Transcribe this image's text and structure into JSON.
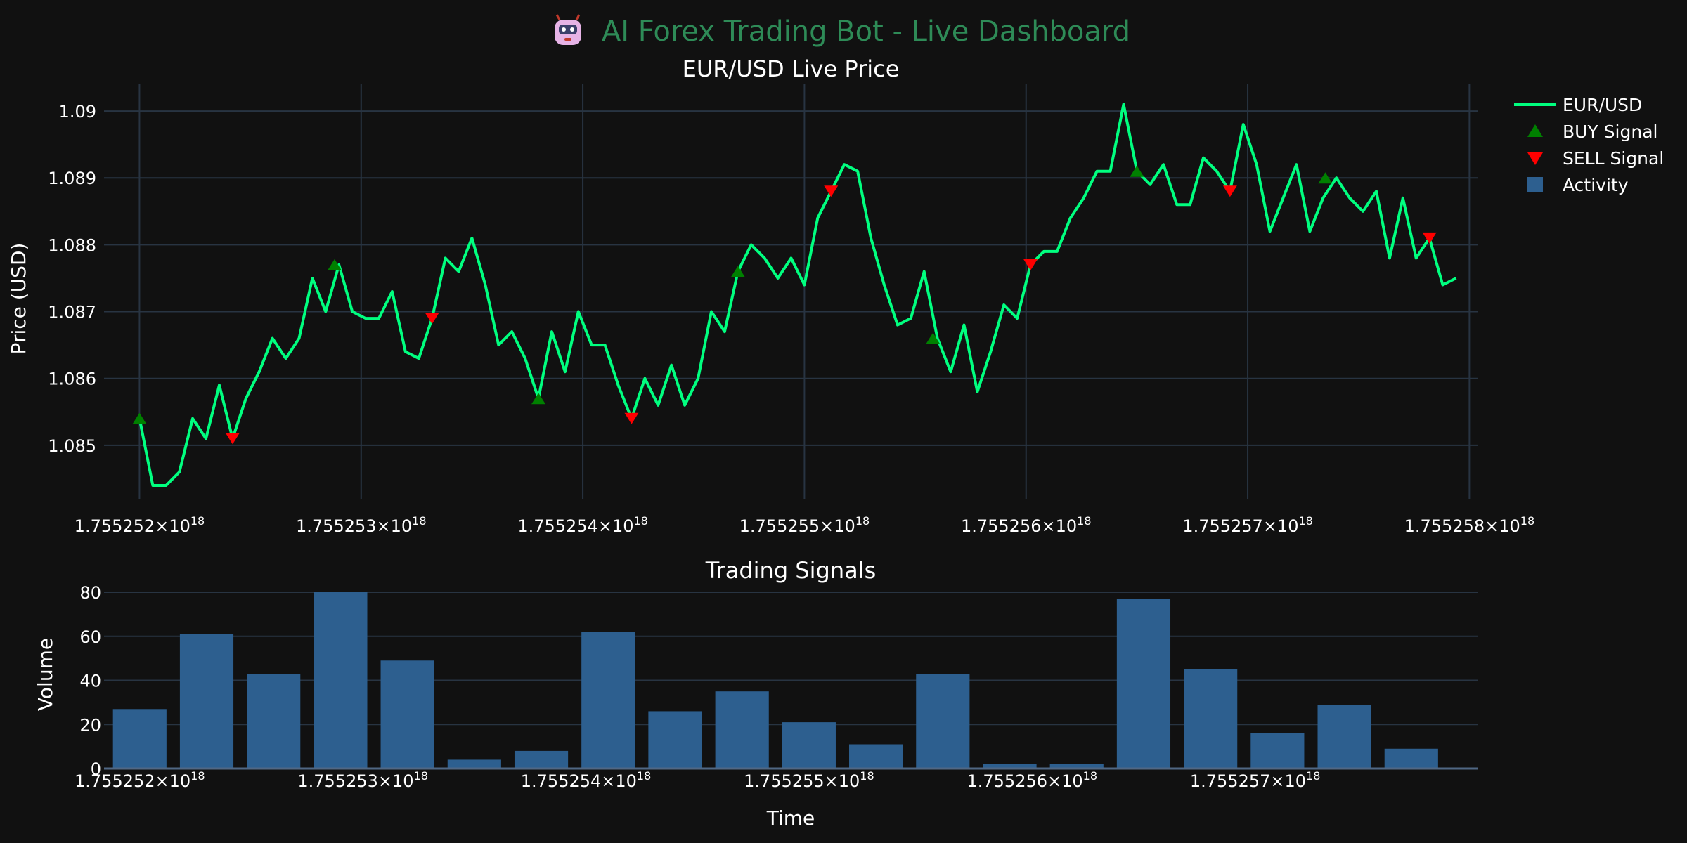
{
  "page_title": {
    "icon": "robot-icon",
    "text": "AI Forex Trading Bot - Live Dashboard"
  },
  "colors": {
    "background": "#111111",
    "title": "#2e8b57",
    "text": "#ffffff",
    "grid": "#283442",
    "line": "#00ff7f",
    "buy": "#008000",
    "sell": "#ff0000",
    "bar": "#2d5f8f"
  },
  "legend": {
    "items": [
      {
        "label": "EUR/USD",
        "kind": "line"
      },
      {
        "label": "BUY Signal",
        "kind": "triangle-up"
      },
      {
        "label": "SELL Signal",
        "kind": "triangle-down"
      },
      {
        "label": "Activity",
        "kind": "square"
      }
    ]
  },
  "chart_data": [
    {
      "type": "line",
      "title": "EUR/USD Live Price",
      "xlabel": "",
      "ylabel": "Price (USD)",
      "xlim": [
        1.75525184,
        1.75525804
      ],
      "ylim": [
        1.0842,
        1.0904
      ],
      "x_ticks": [
        1.755252,
        1.755253,
        1.755254,
        1.755255,
        1.755256,
        1.755257,
        1.755258
      ],
      "x_tick_labels": [
        "1.755252×10",
        "1.755253×10",
        "1.755254×10",
        "1.755255×10",
        "1.755256×10",
        "1.755257×10",
        "1.755258×10"
      ],
      "x_tick_exponent": "18",
      "y_ticks": [
        1.085,
        1.086,
        1.087,
        1.088,
        1.089,
        1.09
      ],
      "y_tick_labels": [
        "1.085",
        "1.086",
        "1.087",
        "1.088",
        "1.089",
        "1.09"
      ],
      "series": [
        {
          "name": "EUR/USD",
          "x_start": 1.755252,
          "x_step": 6e-08,
          "values": [
            1.0854,
            1.0844,
            1.0844,
            1.0846,
            1.0854,
            1.0851,
            1.0859,
            1.0851,
            1.0857,
            1.0861,
            1.0866,
            1.0863,
            1.0866,
            1.0875,
            1.087,
            1.0877,
            1.087,
            1.0869,
            1.0869,
            1.0873,
            1.0864,
            1.0863,
            1.0869,
            1.0878,
            1.0876,
            1.0881,
            1.0874,
            1.0865,
            1.0867,
            1.0863,
            1.0857,
            1.0867,
            1.0861,
            1.087,
            1.0865,
            1.0865,
            1.0859,
            1.0854,
            1.086,
            1.0856,
            1.0862,
            1.0856,
            1.086,
            1.087,
            1.0867,
            1.0876,
            1.088,
            1.0878,
            1.0875,
            1.0878,
            1.0874,
            1.0884,
            1.0888,
            1.0892,
            1.0891,
            1.0881,
            1.0874,
            1.0868,
            1.0869,
            1.0876,
            1.0866,
            1.0861,
            1.0868,
            1.0858,
            1.0864,
            1.0871,
            1.0869,
            1.0877,
            1.0879,
            1.0879,
            1.0884,
            1.0887,
            1.0891,
            1.0891,
            1.0901,
            1.0891,
            1.0889,
            1.0892,
            1.0886,
            1.0886,
            1.0893,
            1.0891,
            1.0888,
            1.0898,
            1.0892,
            1.0882,
            1.0887,
            1.0892,
            1.0882,
            1.0887,
            1.089,
            1.0887,
            1.0885,
            1.0888,
            1.0878,
            1.0887,
            1.0878,
            1.0881,
            1.0874,
            1.0875
          ]
        },
        {
          "name": "BUY Signal",
          "points": [
            {
              "x": 1.755252,
              "y": 1.0854
            },
            {
              "x": 1.75525288,
              "y": 1.0877
            },
            {
              "x": 1.7552538,
              "y": 1.0857
            },
            {
              "x": 1.7552547,
              "y": 1.0876
            },
            {
              "x": 1.75525558,
              "y": 1.0866
            },
            {
              "x": 1.7552565,
              "y": 1.0891
            },
            {
              "x": 1.75525735,
              "y": 1.089
            }
          ]
        },
        {
          "name": "SELL Signal",
          "points": [
            {
              "x": 1.75525242,
              "y": 1.0851
            },
            {
              "x": 1.75525332,
              "y": 1.0869
            },
            {
              "x": 1.75525422,
              "y": 1.0854
            },
            {
              "x": 1.75525512,
              "y": 1.0888
            },
            {
              "x": 1.75525602,
              "y": 1.0877
            },
            {
              "x": 1.75525692,
              "y": 1.0888
            },
            {
              "x": 1.75525782,
              "y": 1.0881
            }
          ]
        }
      ]
    },
    {
      "type": "bar",
      "title": "Trading Signals",
      "xlabel": "Time",
      "ylabel": "Volume",
      "xlim": [
        1.75525184,
        1.755258
      ],
      "ylim": [
        0,
        80
      ],
      "x_ticks": [
        1.755252,
        1.755253,
        1.755254,
        1.755255,
        1.755256,
        1.755257
      ],
      "x_tick_labels": [
        "1.755252×10",
        "1.755253×10",
        "1.755254×10",
        "1.755255×10",
        "1.755256×10",
        "1.755257×10"
      ],
      "x_tick_exponent": "18",
      "y_ticks": [
        0,
        20,
        40,
        60,
        80
      ],
      "y_tick_labels": [
        "0",
        "20",
        "40",
        "60",
        "80"
      ],
      "series": [
        {
          "name": "Activity",
          "x_start": 1.755252,
          "x_step": 3e-07,
          "bar_width": 2.4e-07,
          "values": [
            27,
            61,
            43,
            80,
            49,
            4,
            8,
            62,
            26,
            35,
            21,
            11,
            43,
            2,
            2,
            77,
            45,
            16,
            29,
            9
          ]
        }
      ]
    }
  ]
}
